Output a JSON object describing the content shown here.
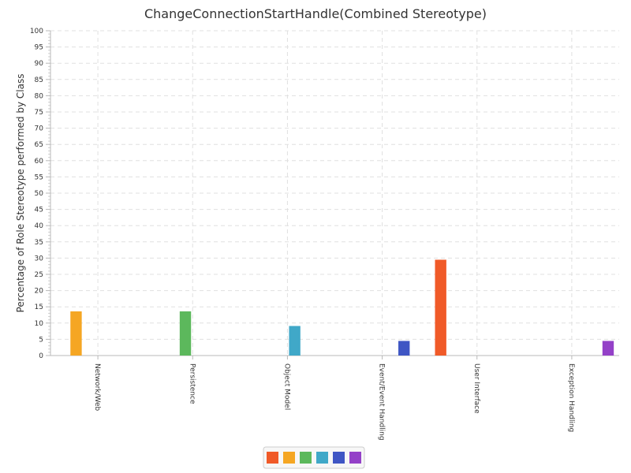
{
  "chart_data": {
    "type": "bar",
    "title": "ChangeConnectionStartHandle(Combined Stereotype)",
    "xlabel": "",
    "ylabel": "Percentage of Role Stereotype performed by Class",
    "ylim": [
      0,
      100
    ],
    "ytick_step": 5,
    "grid": true,
    "legend_placement": "bottom-center",
    "categories": [
      "Network/Web",
      "Persistence",
      "Object Model",
      "Event/Event Handling",
      "User Interface",
      "Exception Handling"
    ],
    "series": [
      {
        "color": "#f05a28",
        "values": [
          0,
          0,
          0,
          0,
          29.5,
          0
        ]
      },
      {
        "color": "#f5a623",
        "values": [
          13.6,
          0,
          0,
          0,
          0,
          0
        ]
      },
      {
        "color": "#5cb85c",
        "values": [
          0,
          13.6,
          0,
          0,
          0,
          0
        ]
      },
      {
        "color": "#40a8c8",
        "values": [
          0,
          0,
          9.1,
          0,
          0,
          0
        ]
      },
      {
        "color": "#3f56c4",
        "values": [
          0,
          0,
          0,
          4.5,
          0,
          0
        ]
      },
      {
        "color": "#9441c8",
        "values": [
          0,
          0,
          0,
          0,
          0,
          4.5
        ]
      }
    ]
  }
}
